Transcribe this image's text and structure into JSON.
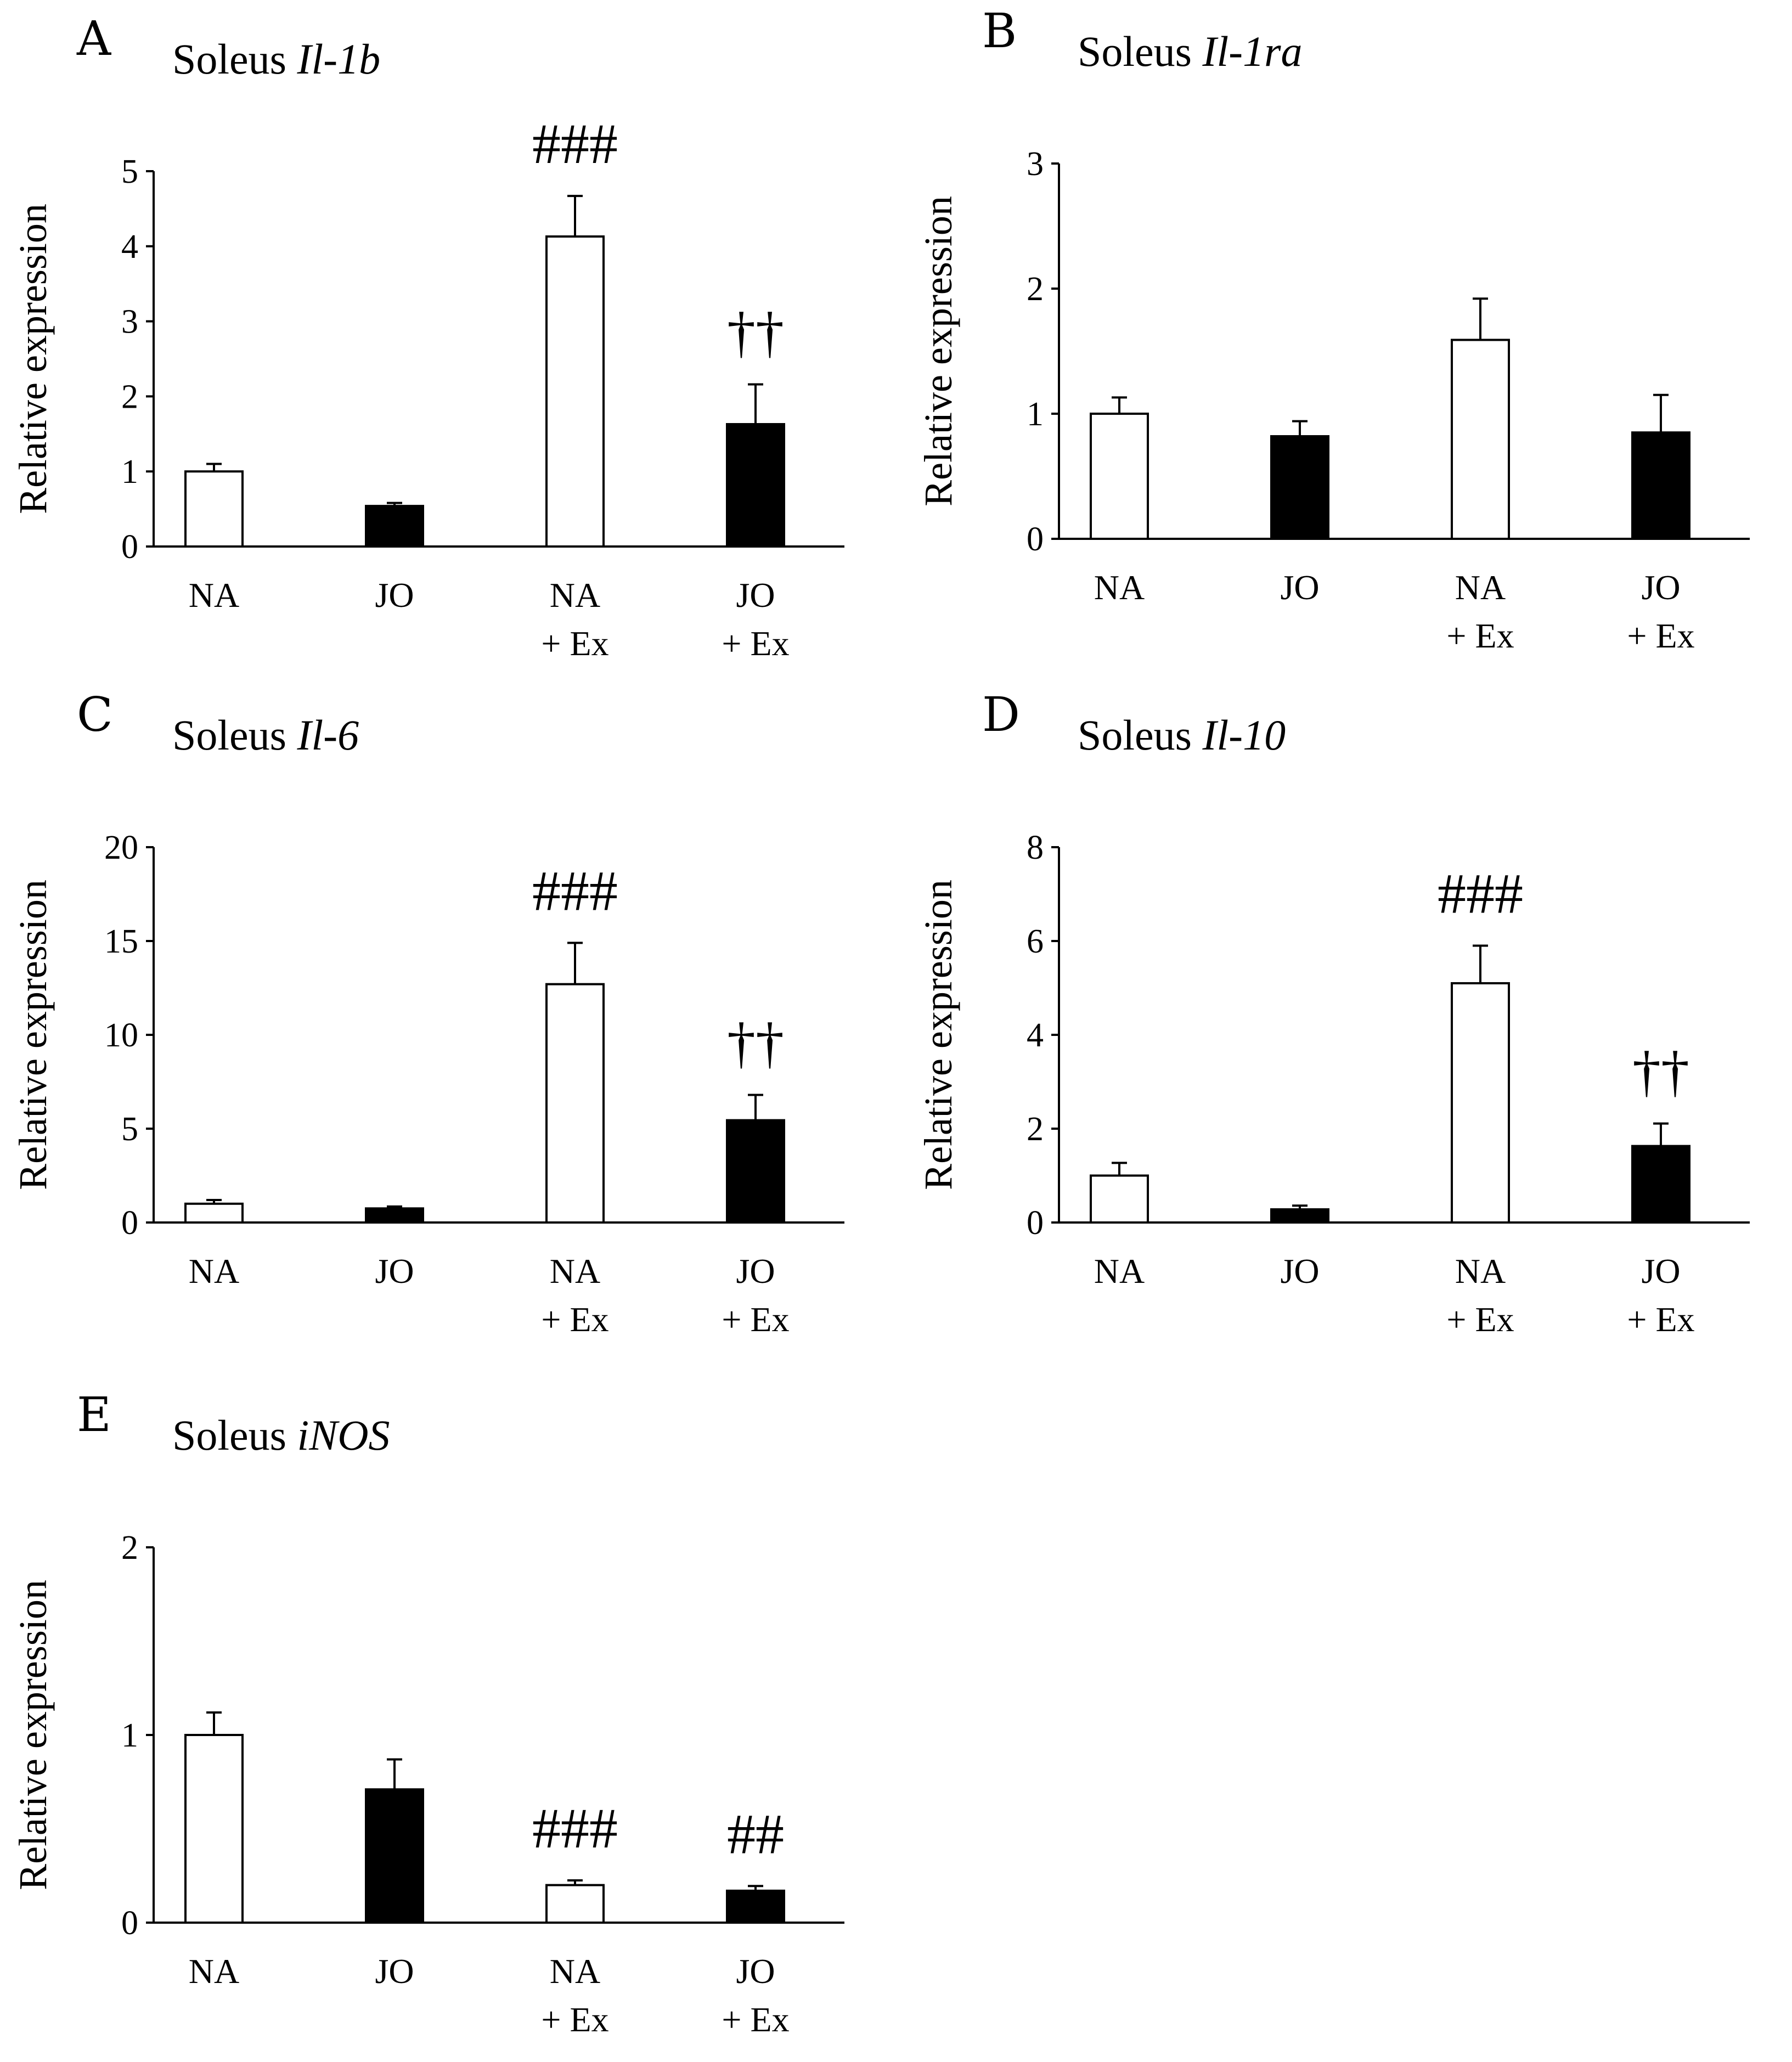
{
  "figure": {
    "series_colors": {
      "NA": "#ffffff",
      "JO": "#000000",
      "outline": "#000000"
    }
  },
  "chart_data": [
    {
      "type": "bar",
      "panel": "A",
      "title_prefix": "Soleus",
      "gene": "Il-1b",
      "ylabel": "Relative expression",
      "ylim": [
        0,
        5
      ],
      "yticks": [
        0,
        1,
        2,
        3,
        4,
        5
      ],
      "categories": [
        [
          "NA"
        ],
        [
          "JO"
        ],
        [
          "NA",
          "+ Ex"
        ],
        [
          "JO",
          "+ Ex"
        ]
      ],
      "values": [
        1.0,
        0.54,
        4.13,
        1.63
      ],
      "errors": [
        0.1,
        0.04,
        0.54,
        0.53
      ],
      "fill": [
        "white",
        "black",
        "white",
        "black"
      ],
      "annotations": [
        "",
        "",
        "###",
        "††"
      ]
    },
    {
      "type": "bar",
      "panel": "B",
      "title_prefix": "Soleus",
      "gene": "Il-1ra",
      "ylabel": "Relative expression",
      "ylim": [
        0,
        3
      ],
      "yticks": [
        0,
        1,
        2,
        3
      ],
      "categories": [
        [
          "NA"
        ],
        [
          "JO"
        ],
        [
          "NA",
          "+ Ex"
        ],
        [
          "JO",
          "+ Ex"
        ]
      ],
      "values": [
        1.0,
        0.82,
        1.59,
        0.85
      ],
      "errors": [
        0.13,
        0.12,
        0.33,
        0.3
      ],
      "fill": [
        "white",
        "black",
        "white",
        "black"
      ],
      "annotations": [
        "",
        "",
        "",
        ""
      ]
    },
    {
      "type": "bar",
      "panel": "C",
      "title_prefix": "Soleus",
      "gene": "Il-6",
      "ylabel": "Relative expression",
      "ylim": [
        0,
        20
      ],
      "yticks": [
        0,
        5,
        10,
        15,
        20
      ],
      "categories": [
        [
          "NA"
        ],
        [
          "JO"
        ],
        [
          "NA",
          "+ Ex"
        ],
        [
          "JO",
          "+ Ex"
        ]
      ],
      "values": [
        1.0,
        0.75,
        12.7,
        5.45
      ],
      "errors": [
        0.2,
        0.1,
        2.2,
        1.35
      ],
      "fill": [
        "white",
        "black",
        "white",
        "black"
      ],
      "annotations": [
        "",
        "",
        "###",
        "††"
      ]
    },
    {
      "type": "bar",
      "panel": "D",
      "title_prefix": "Soleus",
      "gene": "Il-10",
      "ylabel": "Relative expression",
      "ylim": [
        0,
        8
      ],
      "yticks": [
        0,
        2,
        4,
        6,
        8
      ],
      "categories": [
        [
          "NA"
        ],
        [
          "JO"
        ],
        [
          "NA",
          "+ Ex"
        ],
        [
          "JO",
          "+ Ex"
        ]
      ],
      "values": [
        1.0,
        0.28,
        5.1,
        1.63
      ],
      "errors": [
        0.27,
        0.08,
        0.8,
        0.48
      ],
      "fill": [
        "white",
        "black",
        "white",
        "black"
      ],
      "annotations": [
        "",
        "",
        "###",
        "††"
      ]
    },
    {
      "type": "bar",
      "panel": "E",
      "title_prefix": "Soleus",
      "gene": "iNOS",
      "ylabel": "Relative expression",
      "ylim": [
        0,
        2
      ],
      "yticks": [
        0,
        1,
        2
      ],
      "categories": [
        [
          "NA"
        ],
        [
          "JO"
        ],
        [
          "NA",
          "+ Ex"
        ],
        [
          "JO",
          "+ Ex"
        ]
      ],
      "values": [
        1.0,
        0.71,
        0.2,
        0.17
      ],
      "errors": [
        0.12,
        0.16,
        0.025,
        0.025
      ],
      "fill": [
        "white",
        "black",
        "white",
        "black"
      ],
      "annotations": [
        "",
        "",
        "###",
        "##"
      ]
    }
  ]
}
